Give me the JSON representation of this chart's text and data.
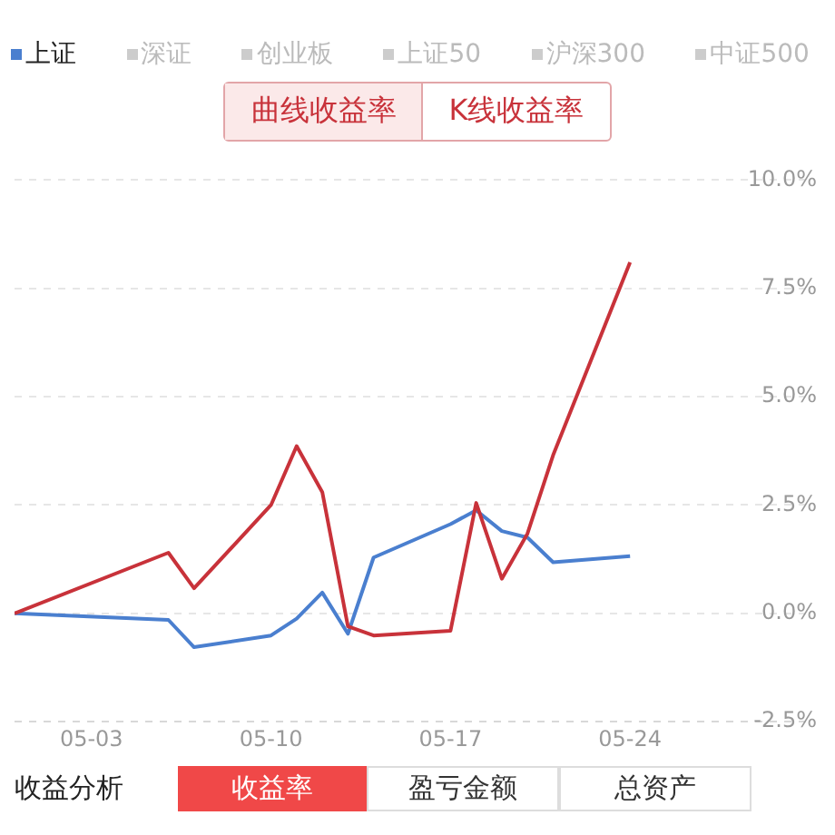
{
  "chart_data": {
    "type": "line",
    "x": [
      "--04-30",
      "--05-06",
      "--05-07",
      "--05-10",
      "--05-11",
      "--05-12",
      "--05-13",
      "--05-14",
      "--05-17",
      "--05-18",
      "--05-19",
      "--05-20",
      "--05-21",
      "--05-24"
    ],
    "series": [
      {
        "color": "#c8323a",
        "values": [
          0,
          1.4,
          0.58,
          2.5,
          3.86,
          2.8,
          -0.3,
          -0.51,
          -0.4,
          2.55,
          0.8,
          1.84,
          3.65,
          8.1
        ]
      },
      {
        "name": "上证",
        "color": "#4a7fcf",
        "values": [
          0,
          -0.15,
          -0.78,
          -0.51,
          -0.12,
          0.48,
          -0.47,
          1.29,
          2.06,
          2.38,
          1.9,
          1.75,
          1.18,
          1.32
        ]
      }
    ],
    "xlim": [
      "--04-30",
      "--05-31"
    ],
    "xticks": [
      {
        "value": "--05-03",
        "label": "05-03"
      },
      {
        "value": "--05-10",
        "label": "05-10"
      },
      {
        "value": "--05-17",
        "label": "05-17"
      },
      {
        "value": "--05-24",
        "label": "05-24"
      }
    ],
    "ylim": [
      -2.5,
      10
    ],
    "yticks": [
      {
        "value": -2.5,
        "label": "-2.5%"
      },
      {
        "value": 0,
        "label": "0.0%"
      },
      {
        "value": 2.5,
        "label": "2.5%"
      },
      {
        "value": 5,
        "label": "5.0%"
      },
      {
        "value": 7.5,
        "label": "7.5%"
      },
      {
        "value": 10,
        "label": "10.0%"
      }
    ],
    "grid": "y",
    "legend": "top left",
    "marker": "none",
    "line_style": "solid",
    "annotations": [
      "深证",
      "创业板",
      "上证50",
      "沪深300",
      "中证500",
      "曲线收益率",
      "K线收益率",
      "收益分析",
      "收益率",
      "盈亏金额",
      "总资产"
    ]
  }
}
